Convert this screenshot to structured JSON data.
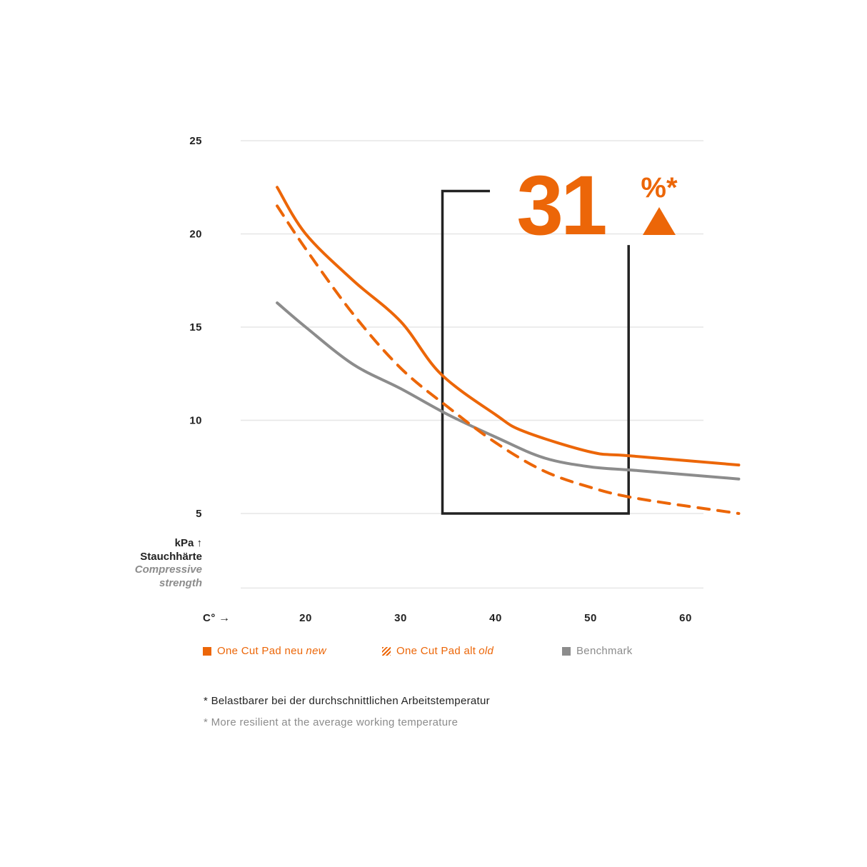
{
  "colors": {
    "new": "#EC6608",
    "old": "#EC6608",
    "benchmark": "#8C8C8C",
    "bracket": "#222222",
    "grid": "#E6E6E6"
  },
  "chart_data": {
    "type": "line",
    "ylabel_unit": "kPa",
    "ylabel_de": "Stauchhärte",
    "ylabel_en1": "Compressive",
    "ylabel_en2": "strength",
    "xlabel": "C°",
    "yticks": [
      5,
      10,
      15,
      20,
      25
    ],
    "xticks": [
      20,
      30,
      40,
      50,
      60
    ],
    "ylim": [
      1,
      25
    ],
    "xlim": [
      13,
      66
    ],
    "grid": true,
    "legend_placement": "bottom",
    "series": [
      {
        "key": "new",
        "name": "One Cut Pad neu",
        "name_en": "new",
        "style": "solid",
        "x": [
          17,
          20,
          25,
          30,
          34.2,
          40,
          43,
          50,
          54,
          65.6
        ],
        "y": [
          22.5,
          20,
          17.5,
          15.3,
          12.5,
          10.3,
          9.4,
          8.3,
          8.1,
          7.6
        ]
      },
      {
        "key": "old",
        "name": "One Cut Pad alt",
        "name_en": "old",
        "style": "dashed",
        "x": [
          17,
          20,
          25,
          30,
          35,
          40,
          45,
          50,
          55,
          65.6
        ],
        "y": [
          21.5,
          19.2,
          15.7,
          12.8,
          10.7,
          8.8,
          7.3,
          6.4,
          5.8,
          5.0
        ]
      },
      {
        "key": "benchmark",
        "name": "Benchmark",
        "style": "solid",
        "x": [
          17,
          20,
          25,
          30,
          35,
          40,
          45,
          50,
          55,
          65.6
        ],
        "y": [
          16.3,
          15,
          13,
          11.7,
          10.3,
          9.1,
          8.0,
          7.5,
          7.3,
          6.85
        ]
      }
    ],
    "annotation": {
      "value": "31",
      "unit": "%*",
      "direction": "up",
      "bracket": {
        "x_from": 34.4,
        "x_to": 54,
        "y_bottom": 5,
        "y_left_top": 22.3,
        "y_right_top": 19.4,
        "x_top_end": 39.4
      }
    }
  },
  "footnotes": {
    "de": "* Belastbarer bei der durchschnittlichen Arbeitstemperatur",
    "en": "* More resilient at the average working temperature"
  }
}
